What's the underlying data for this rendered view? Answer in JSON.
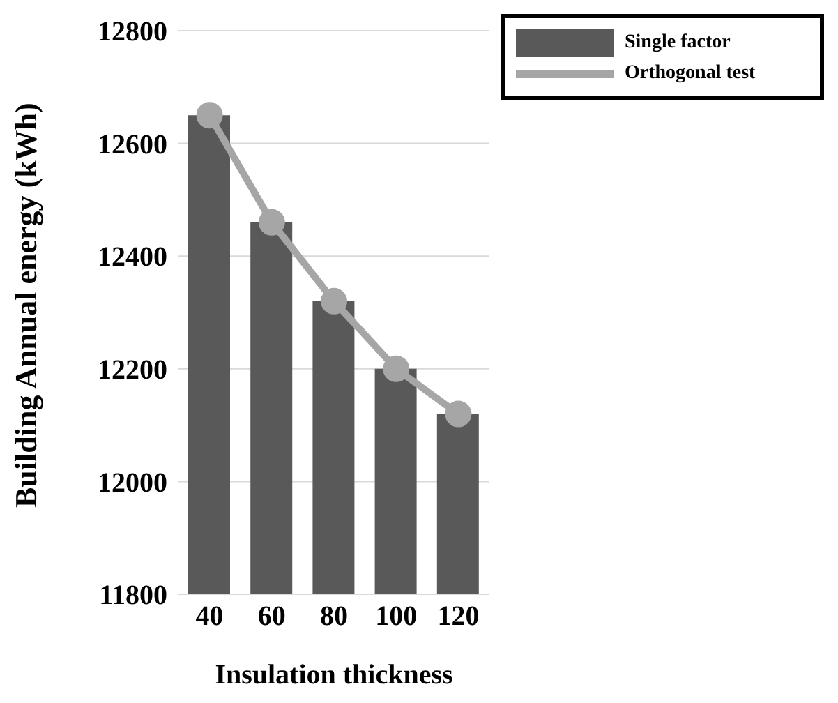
{
  "chart_data": {
    "type": "bar",
    "xlabel": "Insulation thickness",
    "ylabel": "Building Annual energy (kWh)",
    "categories": [
      "40",
      "60",
      "80",
      "100",
      "120"
    ],
    "series": [
      {
        "name": "Single factor",
        "color": "#595959",
        "values": [
          12650,
          12460,
          12320,
          12200,
          12120
        ]
      },
      {
        "name": "Orthogonal test",
        "type": "line",
        "color": "#a6a6a6",
        "values": [
          12650,
          12460,
          12320,
          12200,
          12120
        ],
        "marker": "circle"
      }
    ],
    "ylim": [
      11800,
      12800
    ],
    "yticks": [
      11800,
      12000,
      12200,
      12400,
      12600,
      12800
    ],
    "grid": "y",
    "legend": "top right"
  }
}
